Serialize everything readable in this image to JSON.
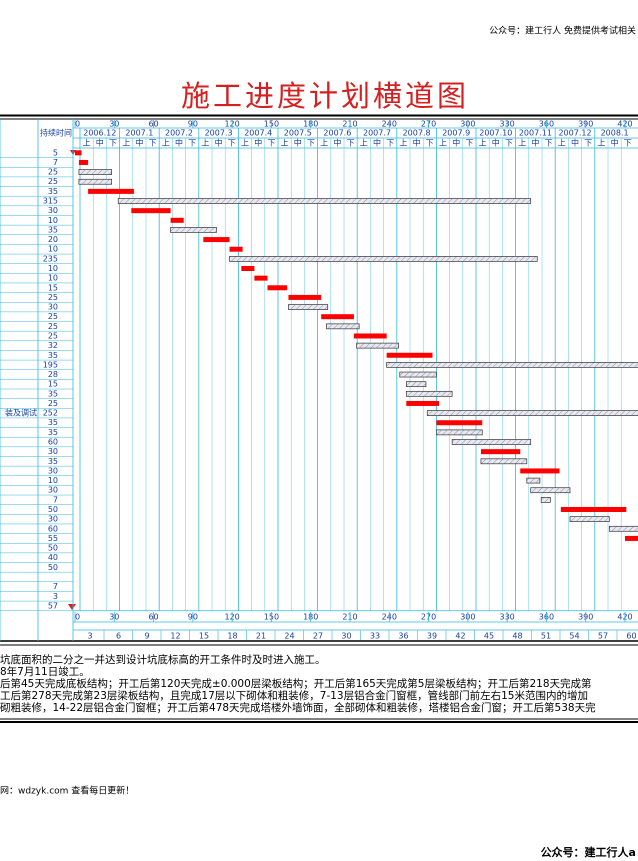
{
  "header_note": "公众号：建工行人  免费提供考试相关",
  "title": "施工进度计划横道图",
  "table": {
    "duration_header": "持续时间",
    "xlim": [
      0,
      420
    ],
    "day_ticks": [
      0,
      30,
      60,
      90,
      120,
      150,
      180,
      210,
      240,
      270,
      300,
      330,
      360,
      390,
      420
    ],
    "months": [
      "2006.12",
      "2007.1",
      "2007.2",
      "2007.3",
      "2007.4",
      "2007.5",
      "2007.6",
      "2007.7",
      "2007.8",
      "2007.9",
      "2007.10",
      "2007.11",
      "2007.12",
      "2008.1"
    ],
    "dekads": [
      "上",
      "中",
      "下"
    ],
    "week_ticks": [
      3,
      6,
      9,
      12,
      15,
      18,
      21,
      24,
      27,
      30,
      33,
      36,
      39,
      42,
      45,
      48,
      51,
      54,
      57,
      60
    ],
    "critical_color": "#ff0000",
    "normal_color": "#e8e8f4",
    "rows": [
      {
        "duration": 5,
        "start": 0,
        "critical": true
      },
      {
        "duration": 7,
        "start": 3,
        "critical": true
      },
      {
        "duration": 25,
        "start": 3,
        "critical": false
      },
      {
        "duration": 25,
        "start": 3,
        "critical": false
      },
      {
        "duration": 35,
        "start": 10,
        "critical": true
      },
      {
        "duration": 315,
        "start": 33,
        "critical": false
      },
      {
        "duration": 30,
        "start": 43,
        "critical": true
      },
      {
        "duration": 10,
        "start": 73,
        "critical": true
      },
      {
        "duration": 35,
        "start": 73,
        "critical": false
      },
      {
        "duration": 20,
        "start": 98,
        "critical": true
      },
      {
        "duration": 10,
        "start": 118,
        "critical": true
      },
      {
        "duration": 235,
        "start": 118,
        "critical": false
      },
      {
        "duration": 10,
        "start": 127,
        "critical": true
      },
      {
        "duration": 10,
        "start": 137,
        "critical": true
      },
      {
        "duration": 15,
        "start": 147,
        "critical": true
      },
      {
        "duration": 25,
        "start": 163,
        "critical": true
      },
      {
        "duration": 30,
        "start": 163,
        "critical": false
      },
      {
        "duration": 25,
        "start": 188,
        "critical": true
      },
      {
        "duration": 25,
        "start": 192,
        "critical": false
      },
      {
        "duration": 25,
        "start": 213,
        "critical": true
      },
      {
        "duration": 32,
        "start": 215,
        "critical": false
      },
      {
        "duration": 35,
        "start": 238,
        "critical": true
      },
      {
        "duration": 195,
        "start": 238,
        "critical": false
      },
      {
        "duration": 28,
        "start": 248,
        "critical": false
      },
      {
        "duration": 15,
        "start": 253,
        "critical": false
      },
      {
        "duration": 35,
        "start": 253,
        "critical": false
      },
      {
        "duration": 25,
        "start": 253,
        "critical": true
      },
      {
        "duration": 252,
        "start": 269,
        "critical": false,
        "label": "装及调试"
      },
      {
        "duration": 35,
        "start": 276,
        "critical": true
      },
      {
        "duration": 35,
        "start": 276,
        "critical": false
      },
      {
        "duration": 60,
        "start": 288,
        "critical": false
      },
      {
        "duration": 30,
        "start": 310,
        "critical": true
      },
      {
        "duration": 35,
        "start": 310,
        "critical": false
      },
      {
        "duration": 30,
        "start": 340,
        "critical": true
      },
      {
        "duration": 10,
        "start": 345,
        "critical": false
      },
      {
        "duration": 30,
        "start": 348,
        "critical": false
      },
      {
        "duration": 7,
        "start": 356,
        "critical": false
      },
      {
        "duration": 50,
        "start": 371,
        "critical": true
      },
      {
        "duration": 30,
        "start": 378,
        "critical": false
      },
      {
        "duration": 60,
        "start": 408,
        "critical": false
      },
      {
        "duration": 55,
        "start": 420,
        "critical": true
      },
      {
        "duration": 50
      },
      {
        "duration": 40
      },
      {
        "duration": 50
      },
      {
        "duration": null
      },
      {
        "duration": 7
      },
      {
        "duration": 3
      },
      {
        "duration": 57
      }
    ]
  },
  "notes": [
    "坑底面积的二分之一并达到设计坑底标高的开工条件时及时进入施工。",
    "8年7月11日竣工。",
    "后第45天完成底板结构；开工后第120天完成±0.000层梁板结构；开工后第165天完成第5层梁板结构；开工后第218天完成第",
    "工后第278天完成第23层梁板结构，且完成17层以下砌体和粗装修，7-13层铝合金门窗框，管线部门前左右15米范围内的增加",
    "砌粗装修，14-22层铝合金门窗框；开工后第478天完成塔楼外墙饰面，全部砌体和粗装修，塔楼铝合金门窗；开工后第538天完"
  ],
  "footer_left": "网：wdzyk.com 查看每日更新！",
  "footer_right": "公众号：建工行人a"
}
